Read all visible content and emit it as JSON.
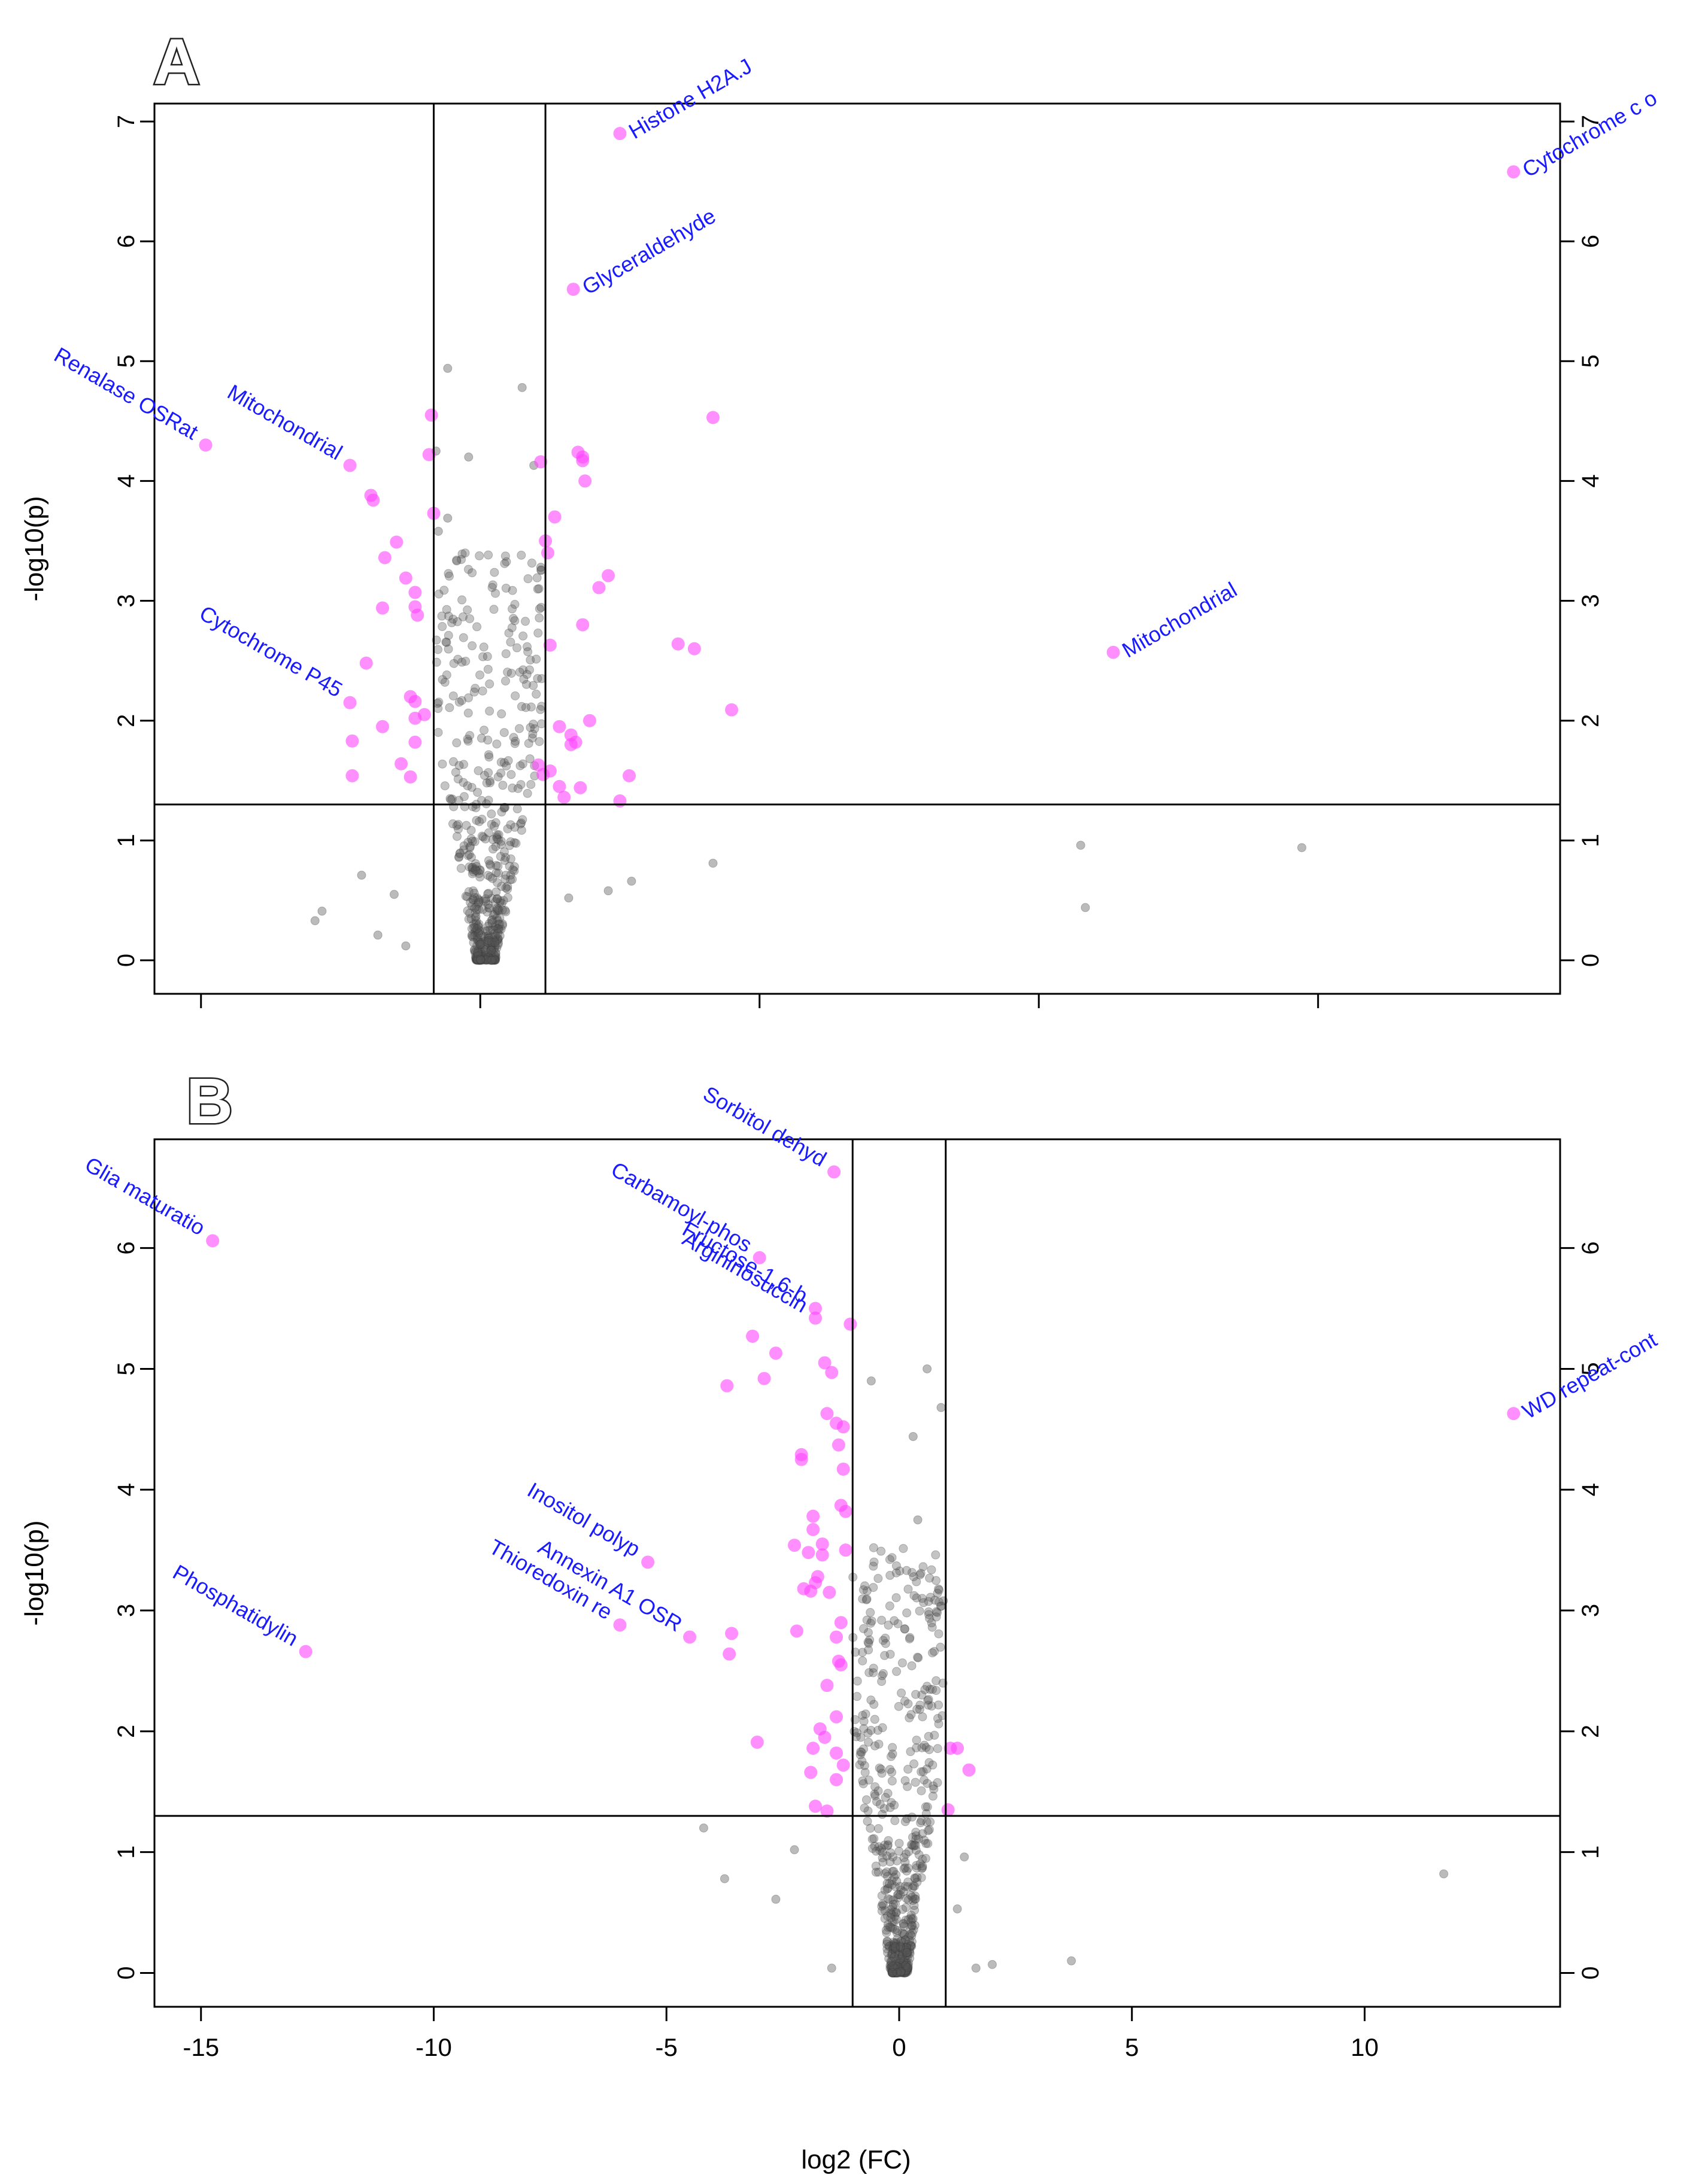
{
  "figure": {
    "xlabel": "log2 (FC)",
    "colors": {
      "significant": "#ff44ff",
      "nonsignificant": "#555555",
      "label": "#1a1aff",
      "axis": "#000000"
    }
  },
  "chart_data": [
    {
      "panel": "A",
      "type": "scatter",
      "ylabel": "-log10(p)",
      "xlim": [
        -16,
        14.2
      ],
      "ylim": [
        -0.28,
        7.15
      ],
      "y_ticks": [
        "0",
        "1",
        "2",
        "3",
        "4",
        "5",
        "6",
        "7"
      ],
      "x_ticks_labeled": false,
      "x_tick_positions": [
        -15,
        -9,
        -3,
        3,
        9
      ],
      "threshold_lines": {
        "vertical": [
          -10,
          -7.6
        ],
        "horizontal": 1.3
      },
      "labeled_points": [
        {
          "name": "Histone H2A.J",
          "x": -6.0,
          "y": 6.9
        },
        {
          "name": "Cytochrome c o",
          "x": 13.2,
          "y": 6.58
        },
        {
          "name": "Glyceraldehyde",
          "x": -7.0,
          "y": 5.6
        },
        {
          "name": "Renalase OSRat",
          "x": -14.9,
          "y": 4.3
        },
        {
          "name": "Mitochondrial",
          "x": -11.8,
          "y": 4.13
        },
        {
          "name": "Cytochrome P45",
          "x": -11.8,
          "y": 2.15
        },
        {
          "name": "Mitochondrial",
          "x": 4.6,
          "y": 2.57
        }
      ],
      "significant_points": [
        [
          -10.05,
          4.55
        ],
        [
          -10.1,
          4.22
        ],
        [
          -10.0,
          3.73
        ],
        [
          -11.3,
          3.84
        ],
        [
          -11.35,
          3.88
        ],
        [
          -10.8,
          3.49
        ],
        [
          -11.05,
          3.36
        ],
        [
          -10.6,
          3.19
        ],
        [
          -10.4,
          3.07
        ],
        [
          -10.4,
          2.95
        ],
        [
          -10.35,
          2.88
        ],
        [
          -11.1,
          2.94
        ],
        [
          -10.5,
          2.2
        ],
        [
          -10.4,
          2.16
        ],
        [
          -10.2,
          2.05
        ],
        [
          -11.45,
          2.48
        ],
        [
          -10.4,
          2.02
        ],
        [
          -11.1,
          1.95
        ],
        [
          -10.4,
          1.82
        ],
        [
          -10.7,
          1.64
        ],
        [
          -11.75,
          1.83
        ],
        [
          -11.75,
          1.54
        ],
        [
          -10.5,
          1.53
        ],
        [
          -7.7,
          4.16
        ],
        [
          -6.9,
          4.24
        ],
        [
          -6.8,
          4.2
        ],
        [
          -6.8,
          4.17
        ],
        [
          -6.75,
          4.0
        ],
        [
          -4.0,
          4.53
        ],
        [
          -7.4,
          3.7
        ],
        [
          -7.6,
          3.5
        ],
        [
          -7.55,
          3.4
        ],
        [
          -6.25,
          3.21
        ],
        [
          -6.45,
          3.11
        ],
        [
          -6.8,
          2.8
        ],
        [
          -7.5,
          2.63
        ],
        [
          -4.75,
          2.64
        ],
        [
          -4.4,
          2.6
        ],
        [
          -6.65,
          2.0
        ],
        [
          -7.3,
          1.95
        ],
        [
          -7.05,
          1.88
        ],
        [
          -7.05,
          1.8
        ],
        [
          -6.95,
          1.82
        ],
        [
          -7.5,
          1.58
        ],
        [
          -7.65,
          1.55
        ],
        [
          -7.3,
          1.45
        ],
        [
          -7.2,
          1.36
        ],
        [
          -6.85,
          1.44
        ],
        [
          -6.0,
          1.33
        ],
        [
          -5.8,
          1.54
        ],
        [
          -3.6,
          2.09
        ],
        [
          -7.75,
          1.63
        ]
      ],
      "nonsig_cluster": {
        "x_center": -8.9,
        "x_spread_left": 1.05,
        "x_spread_right": 1.25,
        "y_max": 3.4,
        "count": 560,
        "seed": 11
      },
      "nonsig_outliers": [
        [
          3.9,
          0.96
        ],
        [
          4.0,
          0.44
        ],
        [
          8.65,
          0.94
        ],
        [
          -4.0,
          0.81
        ],
        [
          -12.4,
          0.41
        ],
        [
          -12.55,
          0.33
        ],
        [
          -11.55,
          0.71
        ],
        [
          -11.2,
          0.21
        ],
        [
          -10.6,
          0.12
        ],
        [
          -9.7,
          4.94
        ],
        [
          -8.1,
          4.78
        ],
        [
          -5.75,
          0.66
        ],
        [
          -6.25,
          0.58
        ],
        [
          -7.1,
          0.52
        ],
        [
          -10.85,
          0.55
        ],
        [
          -9.95,
          4.25
        ],
        [
          -9.25,
          4.2
        ],
        [
          -9.7,
          3.69
        ],
        [
          -9.9,
          3.58
        ],
        [
          -7.85,
          4.13
        ],
        [
          -7.7,
          3.28
        ]
      ]
    },
    {
      "panel": "B",
      "type": "scatter",
      "ylabel": "-log10(p)",
      "xlim": [
        -16,
        14.2
      ],
      "ylim": [
        -0.28,
        6.9
      ],
      "y_ticks": [
        "0",
        "1",
        "2",
        "3",
        "4",
        "5",
        "6"
      ],
      "x_ticks": [
        "-15",
        "-10",
        "-5",
        "0",
        "5",
        "10"
      ],
      "x_tick_values": [
        -15,
        -10,
        -5,
        0,
        5,
        10
      ],
      "threshold_lines": {
        "vertical": [
          -1,
          1
        ],
        "horizontal": 1.3
      },
      "labeled_points": [
        {
          "name": "Sorbitol dehyd",
          "x": -1.4,
          "y": 6.63
        },
        {
          "name": "Glia maturatio",
          "x": -14.75,
          "y": 6.06
        },
        {
          "name": "Carbamoyl-phos",
          "x": -3.0,
          "y": 5.92
        },
        {
          "name": "Fructose-1,6-b",
          "x": -1.8,
          "y": 5.5
        },
        {
          "name": "Argininosuccin",
          "x": -1.8,
          "y": 5.42
        },
        {
          "name": "WD repeat-cont",
          "x": 13.2,
          "y": 4.63
        },
        {
          "name": "Inositol polyp",
          "x": -5.4,
          "y": 3.4
        },
        {
          "name": "Phosphatidylin",
          "x": -12.75,
          "y": 2.66
        },
        {
          "name": "Annexin A1 OSR",
          "x": -4.5,
          "y": 2.78
        },
        {
          "name": "Thioredoxin re",
          "x": -6.0,
          "y": 2.88
        }
      ],
      "significant_points": [
        [
          -1.05,
          5.37
        ],
        [
          -3.15,
          5.27
        ],
        [
          -2.65,
          5.13
        ],
        [
          -2.9,
          4.92
        ],
        [
          -3.7,
          4.86
        ],
        [
          -1.6,
          5.05
        ],
        [
          -1.45,
          4.97
        ],
        [
          -1.55,
          4.63
        ],
        [
          -1.35,
          4.55
        ],
        [
          -1.2,
          4.52
        ],
        [
          -1.3,
          4.37
        ],
        [
          -2.1,
          4.29
        ],
        [
          -2.1,
          4.25
        ],
        [
          -1.2,
          4.17
        ],
        [
          -1.25,
          3.87
        ],
        [
          -1.15,
          3.82
        ],
        [
          -1.85,
          3.78
        ],
        [
          -1.85,
          3.67
        ],
        [
          -1.65,
          3.55
        ],
        [
          -2.25,
          3.54
        ],
        [
          -1.95,
          3.48
        ],
        [
          -1.65,
          3.46
        ],
        [
          -1.15,
          3.5
        ],
        [
          -1.75,
          3.28
        ],
        [
          -1.8,
          3.23
        ],
        [
          -2.05,
          3.18
        ],
        [
          -1.9,
          3.16
        ],
        [
          -1.5,
          3.15
        ],
        [
          -1.25,
          2.9
        ],
        [
          -2.2,
          2.83
        ],
        [
          -1.35,
          2.78
        ],
        [
          -3.6,
          2.81
        ],
        [
          -3.65,
          2.64
        ],
        [
          -1.3,
          2.58
        ],
        [
          -1.25,
          2.55
        ],
        [
          -1.55,
          2.38
        ],
        [
          -1.35,
          2.12
        ],
        [
          -1.7,
          2.02
        ],
        [
          -1.6,
          1.95
        ],
        [
          -3.05,
          1.91
        ],
        [
          -1.85,
          1.86
        ],
        [
          -1.35,
          1.82
        ],
        [
          -1.2,
          1.72
        ],
        [
          -1.35,
          1.6
        ],
        [
          -1.9,
          1.66
        ],
        [
          -1.8,
          1.38
        ],
        [
          -1.55,
          1.34
        ],
        [
          1.1,
          1.86
        ],
        [
          1.25,
          1.86
        ],
        [
          1.5,
          1.68
        ],
        [
          1.05,
          1.35
        ]
      ],
      "nonsig_cluster": {
        "x_center": 0.0,
        "x_spread_left": 1.0,
        "x_spread_right": 1.0,
        "y_max": 3.6,
        "count": 580,
        "seed": 29
      },
      "nonsig_outliers": [
        [
          11.7,
          0.82
        ],
        [
          3.7,
          0.1
        ],
        [
          2.0,
          0.07
        ],
        [
          1.65,
          0.04
        ],
        [
          -4.2,
          1.2
        ],
        [
          -3.75,
          0.78
        ],
        [
          -2.65,
          0.61
        ],
        [
          -1.45,
          0.04
        ],
        [
          0.9,
          4.68
        ],
        [
          0.6,
          5.0
        ],
        [
          -0.6,
          4.9
        ],
        [
          0.3,
          4.44
        ],
        [
          1.4,
          0.96
        ],
        [
          1.25,
          0.53
        ],
        [
          -2.25,
          1.02
        ],
        [
          0.95,
          3.08
        ],
        [
          0.4,
          3.75
        ]
      ]
    }
  ]
}
